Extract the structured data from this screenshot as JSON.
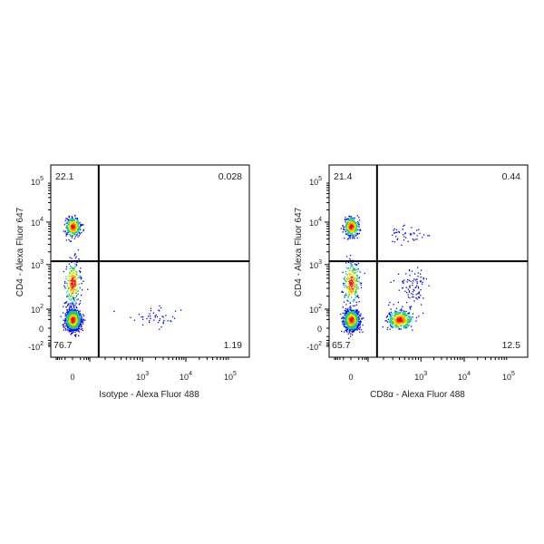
{
  "chart_data": [
    {
      "type": "scatter",
      "subtype": "flow-cytometry-density-dot-plot",
      "xlabel": "Isotype - Alexa Fluor 488",
      "ylabel": "CD4 - Alexa Fluor 647",
      "scale": "biexponential",
      "x_ticks": [
        {
          "v": 0,
          "base": "0",
          "exp": ""
        },
        {
          "v": 1000,
          "base": "10",
          "exp": "3"
        },
        {
          "v": 10000,
          "base": "10",
          "exp": "4"
        },
        {
          "v": 100000,
          "base": "10",
          "exp": "5"
        }
      ],
      "y_ticks": [
        {
          "v": -100,
          "base": "-10",
          "exp": "2"
        },
        {
          "v": 0,
          "base": "0",
          "exp": ""
        },
        {
          "v": 100,
          "base": "10",
          "exp": "2"
        },
        {
          "v": 1000,
          "base": "10",
          "exp": "3"
        },
        {
          "v": 10000,
          "base": "10",
          "exp": "4"
        },
        {
          "v": 100000,
          "base": "10",
          "exp": "5"
        }
      ],
      "gate": {
        "x": 150,
        "y": 1200
      },
      "quadrants": {
        "upper_left": "22.1",
        "upper_right": "0.028",
        "lower_left": "76.7",
        "lower_right": "1.19"
      },
      "populations": [
        {
          "x": 0,
          "y": 8000,
          "n": 380,
          "sx": 0.45,
          "sy": 0.22
        },
        {
          "x": 0,
          "y": 20,
          "n": 1300,
          "sx": 0.45,
          "sy": 0.55
        },
        {
          "x": 0,
          "y": 400,
          "n": 260,
          "sx": 0.5,
          "sy": 0.45
        },
        {
          "x": 2000,
          "y": 40,
          "n": 45,
          "sx": 0.6,
          "sy": 0.5,
          "sparse": true
        }
      ]
    },
    {
      "type": "scatter",
      "subtype": "flow-cytometry-density-dot-plot",
      "xlabel": "CD8α - Alexa Fluor 488",
      "ylabel": "CD4 - Alexa Fluor 647",
      "scale": "biexponential",
      "x_ticks": [
        {
          "v": 0,
          "base": "0",
          "exp": ""
        },
        {
          "v": 1000,
          "base": "10",
          "exp": "3"
        },
        {
          "v": 10000,
          "base": "10",
          "exp": "4"
        },
        {
          "v": 100000,
          "base": "10",
          "exp": "5"
        }
      ],
      "y_ticks": [
        {
          "v": -100,
          "base": "-10",
          "exp": "2"
        },
        {
          "v": 0,
          "base": "0",
          "exp": ""
        },
        {
          "v": 100,
          "base": "10",
          "exp": "2"
        },
        {
          "v": 1000,
          "base": "10",
          "exp": "3"
        },
        {
          "v": 10000,
          "base": "10",
          "exp": "4"
        },
        {
          "v": 100000,
          "base": "10",
          "exp": "5"
        }
      ],
      "gate": {
        "x": 150,
        "y": 1200
      },
      "quadrants": {
        "upper_left": "21.4",
        "upper_right": "0.44",
        "lower_left": "65.7",
        "lower_right": "12.5"
      },
      "populations": [
        {
          "x": 0,
          "y": 8000,
          "n": 360,
          "sx": 0.45,
          "sy": 0.22
        },
        {
          "x": 0,
          "y": 20,
          "n": 1100,
          "sx": 0.45,
          "sy": 0.55
        },
        {
          "x": 0,
          "y": 400,
          "n": 260,
          "sx": 0.5,
          "sy": 0.45
        },
        {
          "x": 400,
          "y": 20,
          "n": 420,
          "sx": 0.22,
          "sy": 0.5
        },
        {
          "x": 700,
          "y": 300,
          "n": 90,
          "sx": 0.3,
          "sy": 0.5,
          "sparse": true
        },
        {
          "x": 500,
          "y": 5000,
          "n": 45,
          "sx": 0.35,
          "sy": 0.2,
          "sparse": true
        }
      ]
    }
  ],
  "colors": {
    "density_low": "#0000ff",
    "density_mid": "#00c000",
    "density_high": "#ff0000",
    "gate_line": "#000000"
  }
}
